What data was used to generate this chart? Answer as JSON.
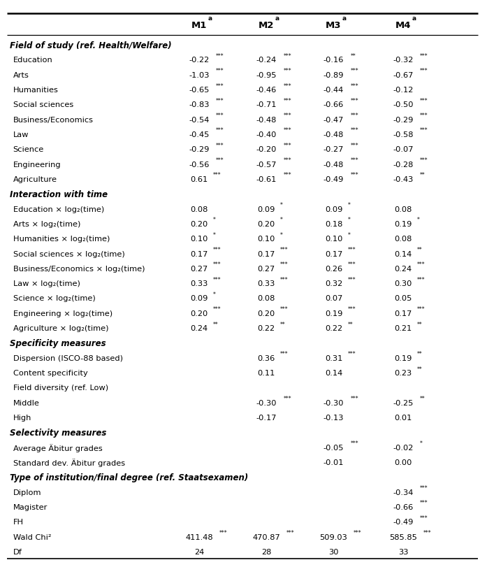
{
  "columns": [
    "M1",
    "M2",
    "M3",
    "M4"
  ],
  "col_sup": "a",
  "rows": [
    {
      "label": "Field of study (ref. Health/Welfare)",
      "type": "section_header",
      "values": [
        "",
        "",
        "",
        ""
      ]
    },
    {
      "label": "Education",
      "type": "data",
      "values": [
        "-0.22***",
        "-0.24***",
        "-0.16**",
        "-0.32***"
      ]
    },
    {
      "label": "Arts",
      "type": "data",
      "values": [
        "-1.03***",
        "-0.95***",
        "-0.89***",
        "-0.67***"
      ]
    },
    {
      "label": "Humanities",
      "type": "data",
      "values": [
        "-0.65***",
        "-0.46***",
        "-0.44***",
        "-0.12"
      ]
    },
    {
      "label": "Social sciences",
      "type": "data",
      "values": [
        "-0.83***",
        "-0.71***",
        "-0.66***",
        "-0.50***"
      ]
    },
    {
      "label": "Business/Economics",
      "type": "data",
      "values": [
        "-0.54***",
        "-0.48***",
        "-0.47***",
        "-0.29***"
      ]
    },
    {
      "label": "Law",
      "type": "data",
      "values": [
        "-0.45***",
        "-0.40***",
        "-0.48***",
        "-0.58***"
      ]
    },
    {
      "label": "Science",
      "type": "data",
      "values": [
        "-0.29***",
        "-0.20***",
        "-0.27***",
        "-0.07"
      ]
    },
    {
      "label": "Engineering",
      "type": "data",
      "values": [
        "-0.56***",
        "-0.57***",
        "-0.48***",
        "-0.28***"
      ]
    },
    {
      "label": "Agriculture",
      "type": "data",
      "values": [
        "0.61***",
        "-0.61***",
        "-0.49***",
        "-0.43**"
      ]
    },
    {
      "label": "Interaction with time",
      "type": "section_header",
      "values": [
        "",
        "",
        "",
        ""
      ]
    },
    {
      "label": "Education × log₂(time)",
      "type": "data",
      "values": [
        "0.08",
        "0.09*",
        "0.09*",
        "0.08"
      ]
    },
    {
      "label": "Arts × log₂(time)",
      "type": "data",
      "values": [
        "0.20*",
        "0.20*",
        "0.18*",
        "0.19*"
      ]
    },
    {
      "label": "Humanities × log₂(time)",
      "type": "data",
      "values": [
        "0.10*",
        "0.10*",
        "0.10*",
        "0.08"
      ]
    },
    {
      "label": "Social sciences × log₂(time)",
      "type": "data",
      "values": [
        "0.17***",
        "0.17***",
        "0.17***",
        "0.14**"
      ]
    },
    {
      "label": "Business/Economics × log₂(time)",
      "type": "data",
      "values": [
        "0.27***",
        "0.27***",
        "0.26***",
        "0.24***"
      ]
    },
    {
      "label": "Law × log₂(time)",
      "type": "data",
      "values": [
        "0.33***",
        "0.33***",
        "0.32***",
        "0.30***"
      ]
    },
    {
      "label": "Science × log₂(time)",
      "type": "data",
      "values": [
        "0.09*",
        "0.08",
        "0.07",
        "0.05"
      ]
    },
    {
      "label": "Engineering × log₂(time)",
      "type": "data",
      "values": [
        "0.20***",
        "0.20***",
        "0.19***",
        "0.17***"
      ]
    },
    {
      "label": "Agriculture × log₂(time)",
      "type": "data",
      "values": [
        "0.24**",
        "0.22**",
        "0.22**",
        "0.21**"
      ]
    },
    {
      "label": "Specificity measures",
      "type": "section_header",
      "values": [
        "",
        "",
        "",
        ""
      ]
    },
    {
      "label": "Dispersion (ISCO-88 based)",
      "type": "data",
      "values": [
        "",
        "0.36***",
        "0.31***",
        "0.19**"
      ]
    },
    {
      "label": "Content specificity",
      "type": "data",
      "values": [
        "",
        "0.11",
        "0.14",
        "0.23**"
      ]
    },
    {
      "label": "Field diversity (ref. Low)",
      "type": "data",
      "values": [
        "",
        "",
        "",
        ""
      ]
    },
    {
      "label": "Middle",
      "type": "data",
      "values": [
        "",
        "-0.30***",
        "-0.30***",
        "-0.25**"
      ]
    },
    {
      "label": "High",
      "type": "data",
      "values": [
        "",
        "-0.17",
        "-0.13",
        "0.01"
      ]
    },
    {
      "label": "Selectivity measures",
      "type": "section_header",
      "values": [
        "",
        "",
        "",
        ""
      ]
    },
    {
      "label": "Average Äbitur grades",
      "type": "data_italic",
      "values": [
        "",
        "",
        "-0.05***",
        "-0.02*"
      ]
    },
    {
      "label": "Standard dev. Äbitur grades",
      "type": "data_italic",
      "values": [
        "",
        "",
        "-0.01",
        "0.00"
      ]
    },
    {
      "label": "Type of institution/final degree (ref. Staatsexamen)",
      "type": "section_header",
      "values": [
        "",
        "",
        "",
        ""
      ]
    },
    {
      "label": "Diplom",
      "type": "data",
      "values": [
        "",
        "",
        "",
        "-0.34***"
      ]
    },
    {
      "label": "Magister",
      "type": "data",
      "values": [
        "",
        "",
        "",
        "-0.66***"
      ]
    },
    {
      "label": "FH",
      "type": "data",
      "values": [
        "",
        "",
        "",
        "-0.49***"
      ]
    },
    {
      "label": "Wald Chi²",
      "type": "stat",
      "values": [
        "411.48***",
        "470.87***",
        "509.03***",
        "585.85***"
      ]
    },
    {
      "label": "Df",
      "type": "stat",
      "values": [
        "24",
        "28",
        "30",
        "33"
      ]
    }
  ],
  "fig_width": 6.87,
  "fig_height": 8.12,
  "dpi": 100
}
